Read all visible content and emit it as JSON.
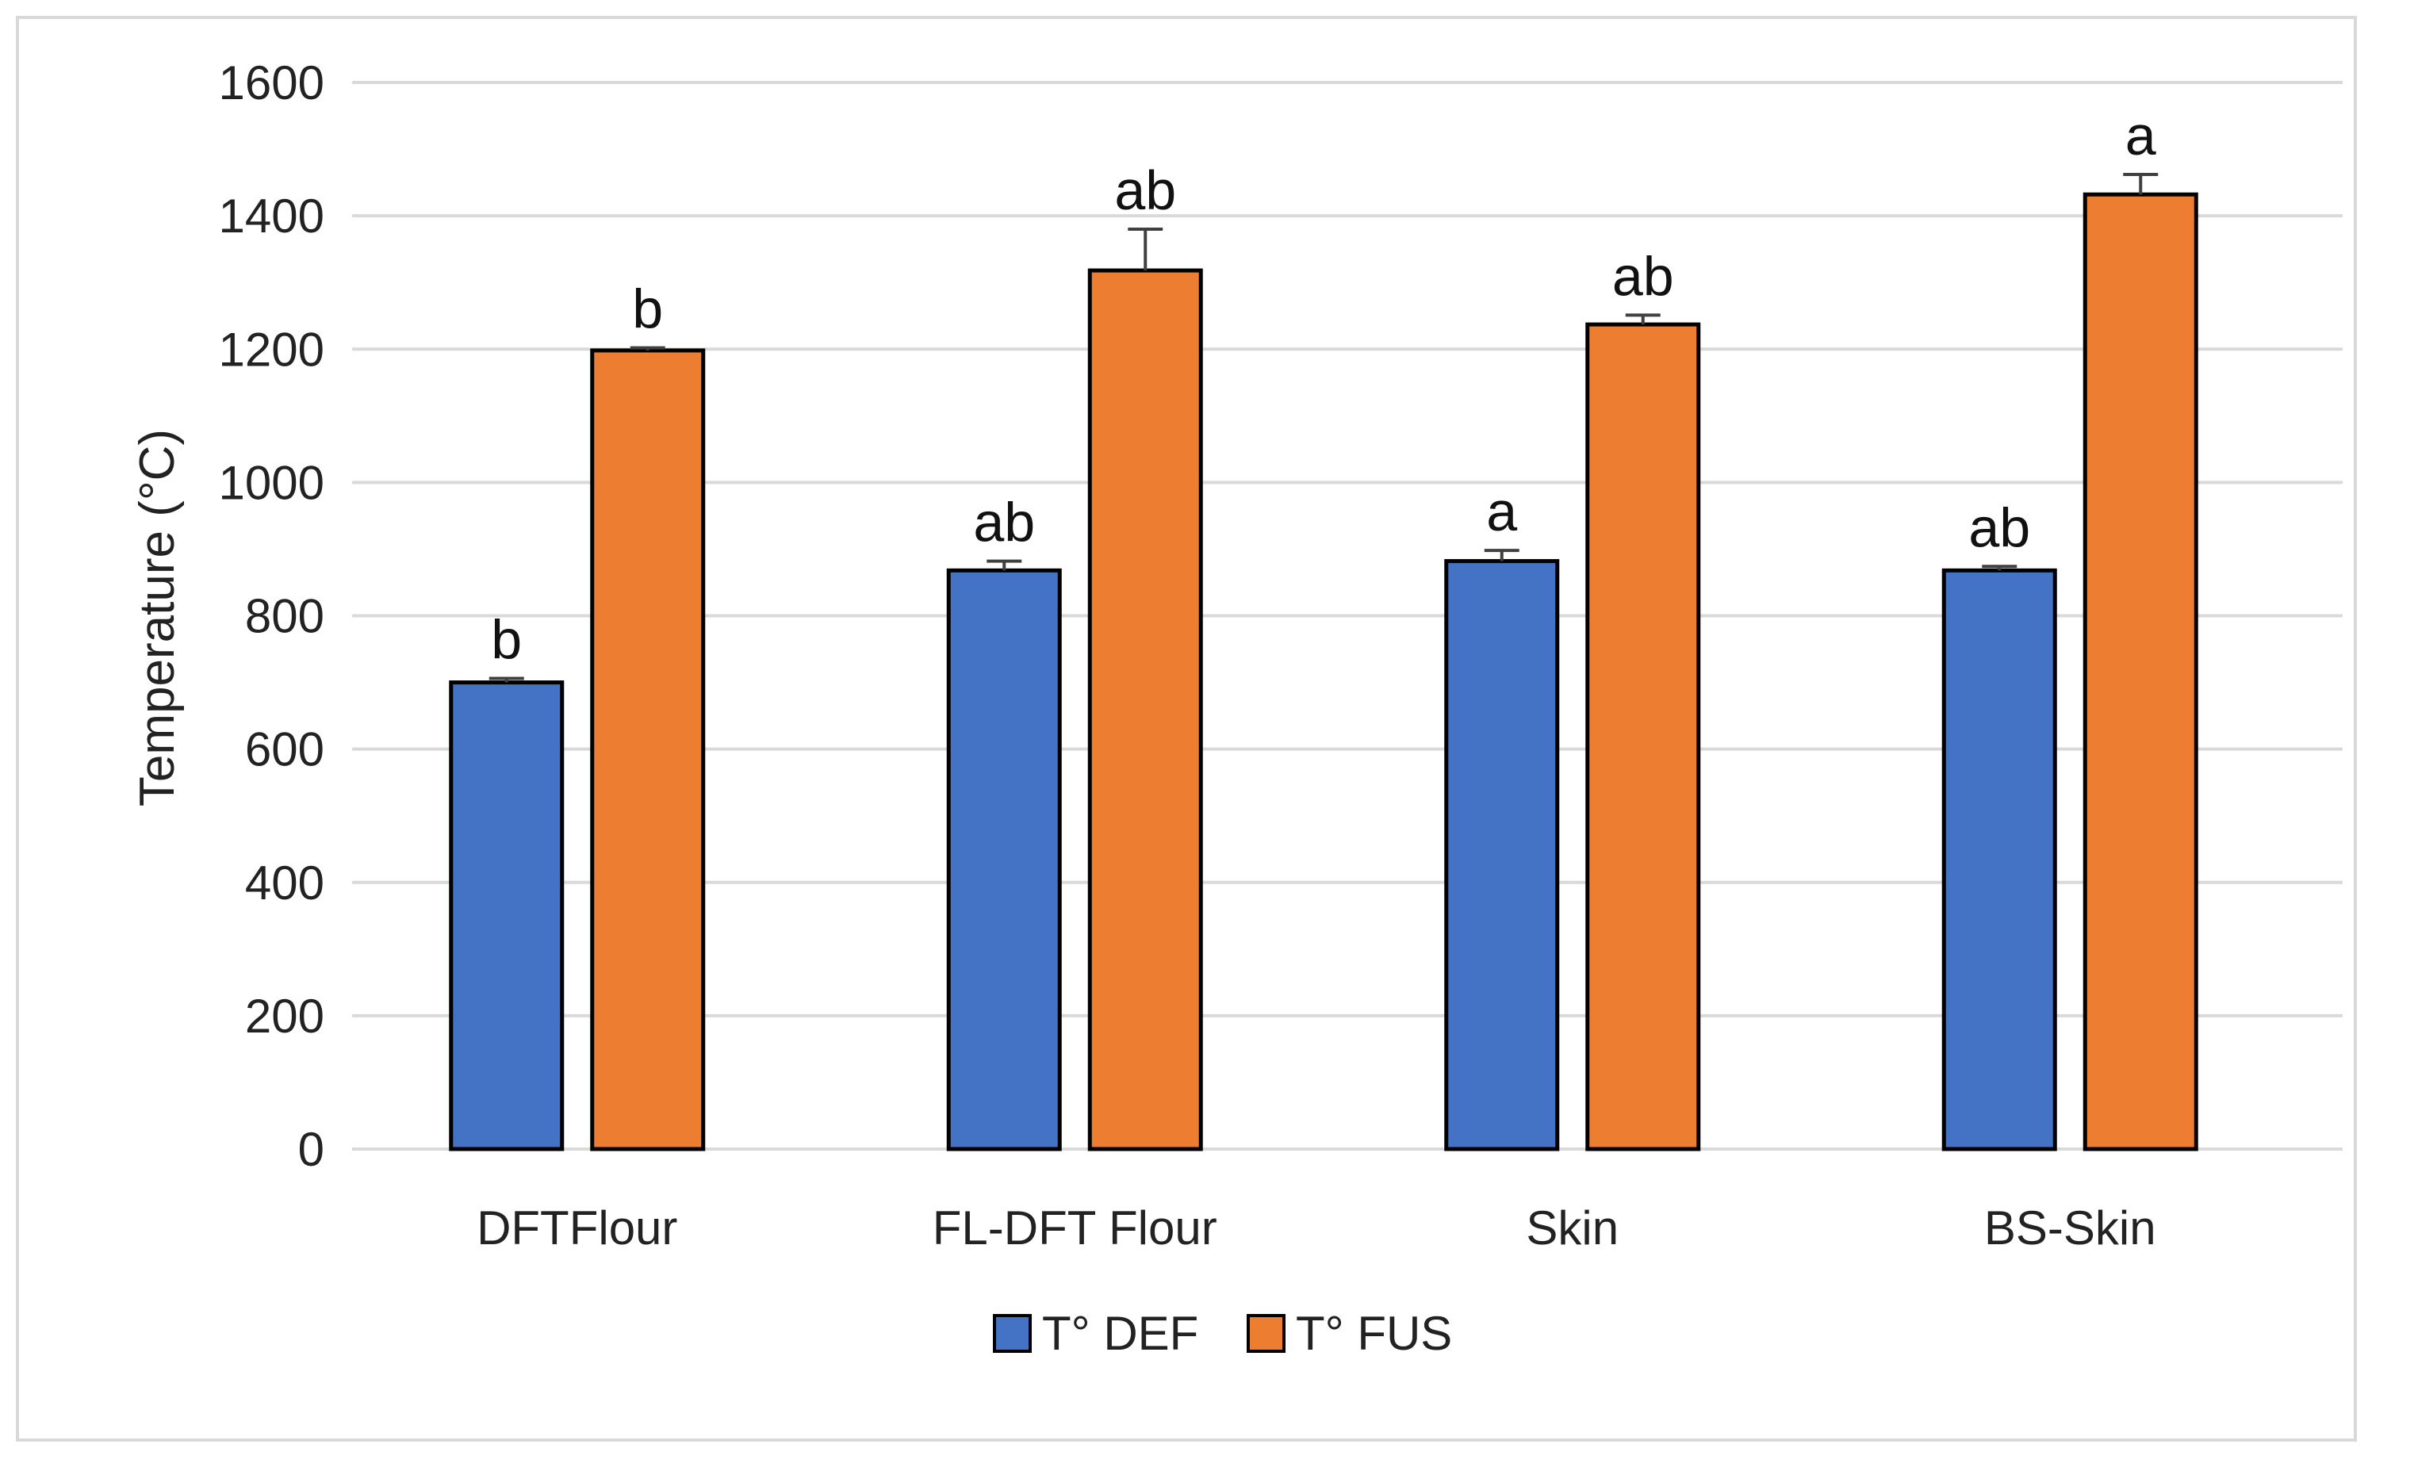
{
  "chart_data": {
    "type": "bar",
    "title": "",
    "xlabel": "",
    "ylabel": "Temperature  (°C)",
    "ylim": [
      0,
      1600
    ],
    "yticks": [
      0,
      200,
      400,
      600,
      800,
      1000,
      1200,
      1400,
      1600
    ],
    "grid": true,
    "legend_position": "bottom",
    "categories": [
      "DFTFlour",
      "FL-DFT Flour",
      "Skin",
      "BS-Skin"
    ],
    "series": [
      {
        "name": "T° DEF",
        "color": "#4472c4",
        "values": [
          700,
          868,
          882,
          868
        ],
        "errors": [
          6,
          14,
          16,
          6
        ],
        "significance": [
          "b",
          "ab",
          "a",
          "ab"
        ]
      },
      {
        "name": "T° FUS",
        "color": "#ed7d31",
        "values": [
          1198,
          1318,
          1237,
          1432
        ],
        "errors": [
          4,
          62,
          14,
          30
        ],
        "significance": [
          "b",
          "ab",
          "ab",
          "a"
        ]
      }
    ],
    "colors": {
      "gridline": "#d9d9d9",
      "bar_outline": "#000000",
      "error_bar": "#404040",
      "frame": "#d9d9d9"
    }
  }
}
